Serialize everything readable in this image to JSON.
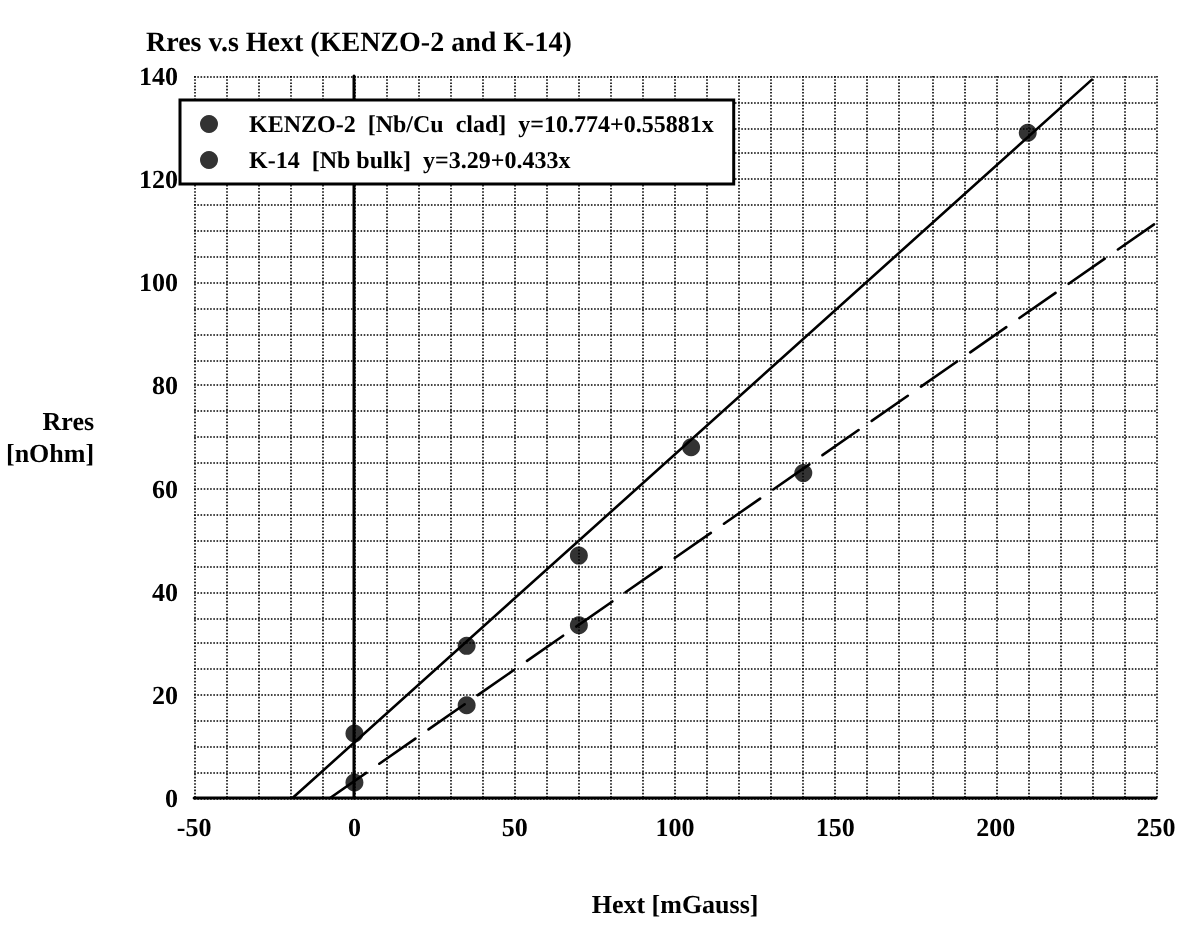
{
  "chart_data": {
    "type": "scatter",
    "title": "Rres v.s Hext (KENZO-2 and K-14)",
    "xlabel": "Hext [mGauss]",
    "ylabel": "Rres\n[nOhm]",
    "xlim": [
      -50,
      250
    ],
    "xticks": [
      -50,
      0,
      50,
      100,
      150,
      200,
      250
    ],
    "ylim": [
      0,
      140
    ],
    "yticks": [
      0,
      20,
      40,
      60,
      80,
      100,
      120,
      140
    ],
    "grid": true,
    "legend": "top left",
    "marker": "circle",
    "series": [
      {
        "name": "KENZO-2  [Nb/Cu  clad]  y=10.774+0.55881x",
        "color": "#000000",
        "x": [
          0,
          35,
          70,
          105,
          210
        ],
        "values": [
          12.5,
          29.5,
          47,
          68,
          129
        ]
      },
      {
        "name": "K-14  [Nb bulk]  y=3.29+0.433x",
        "color": "#000000",
        "x": [
          0,
          35,
          70,
          140
        ],
        "values": [
          3,
          18,
          33.5,
          63
        ]
      },
      {
        "type": "line",
        "color": "#000000",
        "line_style": "solid",
        "marker": "none",
        "x": [
          -19.3,
          230
        ],
        "values": [
          0,
          139.3
        ]
      },
      {
        "type": "line",
        "color": "#000000",
        "line_style": "dashed",
        "marker": "none",
        "x": [
          -7.6,
          250
        ],
        "values": [
          0,
          111.5
        ]
      }
    ]
  }
}
